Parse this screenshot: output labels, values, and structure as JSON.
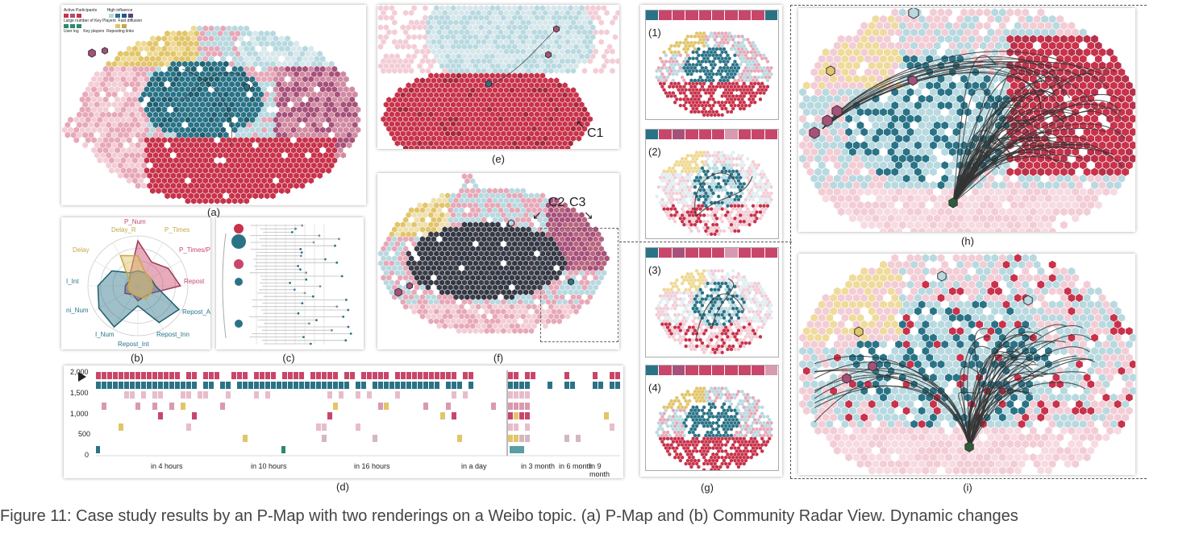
{
  "captions": {
    "a": "(a)",
    "b": "(b)",
    "c": "(c)",
    "d": "(d)",
    "e": "(e)",
    "f": "(f)",
    "g": "(g)",
    "h": "(h)",
    "i": "(i)"
  },
  "annotations": {
    "c1": "C1",
    "c2": "C2",
    "c3": "C3"
  },
  "legend_a": {
    "row1_left": "Active Participants",
    "row1_right": "High influence",
    "row2_left": "Large number of Key Players",
    "row2_right": "Fast diffusion",
    "row3_left": "User log",
    "row3_mid": "Key players",
    "row3_right": "Reposting links"
  },
  "radar_labels": {
    "p_num": "P_Num",
    "p_times": "P_Times",
    "p_times_p": "P_Times/P",
    "repost": "Repost",
    "repost_a": "Repost_A",
    "repost_inn": "Repost_Inn",
    "repost_int": "Repost_Int",
    "i_num": "I_Num",
    "ni_num": "ni_Num",
    "i_int": "I_Int",
    "delay": "Delay",
    "delay_r": "Delay_R"
  },
  "timeline": {
    "y_ticks": [
      "2,000",
      "1,500",
      "1,000",
      "500",
      "0"
    ],
    "x_ticks": [
      "in 4 hours",
      "in 10 hours",
      "in 16 hours",
      "in a day",
      "in 3 month",
      "in 6 month",
      "in 9 month"
    ]
  },
  "g_items": [
    "(1)",
    "(2)",
    "(3)",
    "(4)"
  ],
  "figure_caption": "Figure 11: Case study results by an P-Map with two renderings on a Weibo topic. (a) P-Map and (b) Community Radar View. Dynamic changes",
  "colors": {
    "red": "#c8324a",
    "pink": "#e7a8b8",
    "lightpink": "#f3cdd6",
    "teal": "#2a7387",
    "lightblue": "#b8d9e0",
    "yellow": "#e2c56a",
    "purple": "#a6517a",
    "dark": "#2d2d2d"
  }
}
